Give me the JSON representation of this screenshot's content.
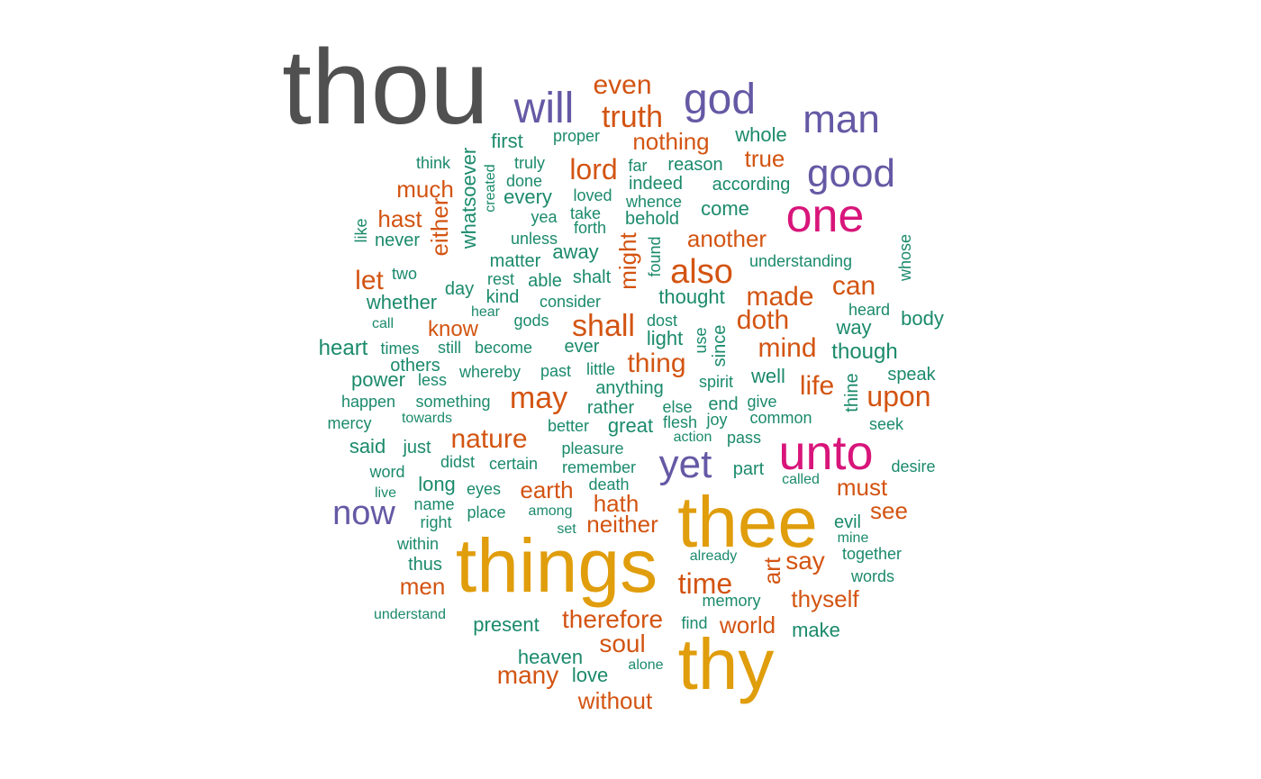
{
  "colors": {
    "gray": "#505050",
    "purple": "#6559a5",
    "magenta": "#d8157a",
    "gold": "#e09d0c",
    "orange": "#d35412",
    "green": "#1b8a6b"
  },
  "words": [
    {
      "text": "thou",
      "color": "gray"
    },
    {
      "text": "things",
      "color": "gold"
    },
    {
      "text": "thee",
      "color": "gold"
    },
    {
      "text": "thy",
      "color": "gold"
    },
    {
      "text": "unto",
      "color": "magenta"
    },
    {
      "text": "one",
      "color": "magenta"
    },
    {
      "text": "will",
      "color": "purple"
    },
    {
      "text": "god",
      "color": "purple"
    },
    {
      "text": "man",
      "color": "purple"
    },
    {
      "text": "good",
      "color": "purple"
    },
    {
      "text": "yet",
      "color": "purple"
    },
    {
      "text": "now",
      "color": "purple"
    },
    {
      "text": "even",
      "color": "orange"
    },
    {
      "text": "truth",
      "color": "orange"
    },
    {
      "text": "nothing",
      "color": "orange"
    },
    {
      "text": "lord",
      "color": "orange"
    },
    {
      "text": "true",
      "color": "orange"
    },
    {
      "text": "much",
      "color": "orange"
    },
    {
      "text": "hast",
      "color": "orange"
    },
    {
      "text": "either",
      "color": "orange"
    },
    {
      "text": "might",
      "color": "orange"
    },
    {
      "text": "another",
      "color": "orange"
    },
    {
      "text": "also",
      "color": "orange"
    },
    {
      "text": "let",
      "color": "orange"
    },
    {
      "text": "can",
      "color": "orange"
    },
    {
      "text": "made",
      "color": "orange"
    },
    {
      "text": "shall",
      "color": "orange"
    },
    {
      "text": "doth",
      "color": "orange"
    },
    {
      "text": "know",
      "color": "orange"
    },
    {
      "text": "mind",
      "color": "orange"
    },
    {
      "text": "thing",
      "color": "orange"
    },
    {
      "text": "life",
      "color": "orange"
    },
    {
      "text": "upon",
      "color": "orange"
    },
    {
      "text": "may",
      "color": "orange"
    },
    {
      "text": "nature",
      "color": "orange"
    },
    {
      "text": "earth",
      "color": "orange"
    },
    {
      "text": "hath",
      "color": "orange"
    },
    {
      "text": "must",
      "color": "orange"
    },
    {
      "text": "neither",
      "color": "orange"
    },
    {
      "text": "see",
      "color": "orange"
    },
    {
      "text": "say",
      "color": "orange"
    },
    {
      "text": "art",
      "color": "orange"
    },
    {
      "text": "time",
      "color": "orange"
    },
    {
      "text": "men",
      "color": "orange"
    },
    {
      "text": "thyself",
      "color": "orange"
    },
    {
      "text": "therefore",
      "color": "orange"
    },
    {
      "text": "world",
      "color": "orange"
    },
    {
      "text": "soul",
      "color": "orange"
    },
    {
      "text": "many",
      "color": "orange"
    },
    {
      "text": "without",
      "color": "orange"
    },
    {
      "text": "proper",
      "color": "green"
    },
    {
      "text": "first",
      "color": "green"
    },
    {
      "text": "whole",
      "color": "green"
    },
    {
      "text": "whatsoever",
      "color": "green"
    },
    {
      "text": "think",
      "color": "green"
    },
    {
      "text": "truly",
      "color": "green"
    },
    {
      "text": "far",
      "color": "green"
    },
    {
      "text": "reason",
      "color": "green"
    },
    {
      "text": "done",
      "color": "green"
    },
    {
      "text": "indeed",
      "color": "green"
    },
    {
      "text": "according",
      "color": "green"
    },
    {
      "text": "created",
      "color": "green"
    },
    {
      "text": "every",
      "color": "green"
    },
    {
      "text": "loved",
      "color": "green"
    },
    {
      "text": "whence",
      "color": "green"
    },
    {
      "text": "take",
      "color": "green"
    },
    {
      "text": "come",
      "color": "green"
    },
    {
      "text": "yea",
      "color": "green"
    },
    {
      "text": "behold",
      "color": "green"
    },
    {
      "text": "forth",
      "color": "green"
    },
    {
      "text": "like",
      "color": "green"
    },
    {
      "text": "never",
      "color": "green"
    },
    {
      "text": "unless",
      "color": "green"
    },
    {
      "text": "found",
      "color": "green"
    },
    {
      "text": "away",
      "color": "green"
    },
    {
      "text": "whose",
      "color": "green"
    },
    {
      "text": "matter",
      "color": "green"
    },
    {
      "text": "understanding",
      "color": "green"
    },
    {
      "text": "two",
      "color": "green"
    },
    {
      "text": "rest",
      "color": "green"
    },
    {
      "text": "able",
      "color": "green"
    },
    {
      "text": "shalt",
      "color": "green"
    },
    {
      "text": "day",
      "color": "green"
    },
    {
      "text": "kind",
      "color": "green"
    },
    {
      "text": "whether",
      "color": "green"
    },
    {
      "text": "consider",
      "color": "green"
    },
    {
      "text": "thought",
      "color": "green"
    },
    {
      "text": "hear",
      "color": "green"
    },
    {
      "text": "heard",
      "color": "green"
    },
    {
      "text": "call",
      "color": "green"
    },
    {
      "text": "gods",
      "color": "green"
    },
    {
      "text": "dost",
      "color": "green"
    },
    {
      "text": "use",
      "color": "green"
    },
    {
      "text": "way",
      "color": "green"
    },
    {
      "text": "body",
      "color": "green"
    },
    {
      "text": "since",
      "color": "green"
    },
    {
      "text": "light",
      "color": "green"
    },
    {
      "text": "heart",
      "color": "green"
    },
    {
      "text": "times",
      "color": "green"
    },
    {
      "text": "still",
      "color": "green"
    },
    {
      "text": "become",
      "color": "green"
    },
    {
      "text": "ever",
      "color": "green"
    },
    {
      "text": "though",
      "color": "green"
    },
    {
      "text": "others",
      "color": "green"
    },
    {
      "text": "power",
      "color": "green"
    },
    {
      "text": "less",
      "color": "green"
    },
    {
      "text": "whereby",
      "color": "green"
    },
    {
      "text": "past",
      "color": "green"
    },
    {
      "text": "little",
      "color": "green"
    },
    {
      "text": "well",
      "color": "green"
    },
    {
      "text": "spirit",
      "color": "green"
    },
    {
      "text": "thine",
      "color": "green"
    },
    {
      "text": "speak",
      "color": "green"
    },
    {
      "text": "anything",
      "color": "green"
    },
    {
      "text": "happen",
      "color": "green"
    },
    {
      "text": "something",
      "color": "green"
    },
    {
      "text": "rather",
      "color": "green"
    },
    {
      "text": "else",
      "color": "green"
    },
    {
      "text": "end",
      "color": "green"
    },
    {
      "text": "give",
      "color": "green"
    },
    {
      "text": "mercy",
      "color": "green"
    },
    {
      "text": "towards",
      "color": "green"
    },
    {
      "text": "better",
      "color": "green"
    },
    {
      "text": "great",
      "color": "green"
    },
    {
      "text": "flesh",
      "color": "green"
    },
    {
      "text": "joy",
      "color": "green"
    },
    {
      "text": "common",
      "color": "green"
    },
    {
      "text": "seek",
      "color": "green"
    },
    {
      "text": "action",
      "color": "green"
    },
    {
      "text": "pass",
      "color": "green"
    },
    {
      "text": "said",
      "color": "green"
    },
    {
      "text": "just",
      "color": "green"
    },
    {
      "text": "pleasure",
      "color": "green"
    },
    {
      "text": "didst",
      "color": "green"
    },
    {
      "text": "certain",
      "color": "green"
    },
    {
      "text": "remember",
      "color": "green"
    },
    {
      "text": "part",
      "color": "green"
    },
    {
      "text": "desire",
      "color": "green"
    },
    {
      "text": "word",
      "color": "green"
    },
    {
      "text": "long",
      "color": "green"
    },
    {
      "text": "eyes",
      "color": "green"
    },
    {
      "text": "death",
      "color": "green"
    },
    {
      "text": "called",
      "color": "green"
    },
    {
      "text": "live",
      "color": "green"
    },
    {
      "text": "name",
      "color": "green"
    },
    {
      "text": "place",
      "color": "green"
    },
    {
      "text": "among",
      "color": "green"
    },
    {
      "text": "right",
      "color": "green"
    },
    {
      "text": "set",
      "color": "green"
    },
    {
      "text": "evil",
      "color": "green"
    },
    {
      "text": "mine",
      "color": "green"
    },
    {
      "text": "within",
      "color": "green"
    },
    {
      "text": "already",
      "color": "green"
    },
    {
      "text": "together",
      "color": "green"
    },
    {
      "text": "thus",
      "color": "green"
    },
    {
      "text": "words",
      "color": "green"
    },
    {
      "text": "memory",
      "color": "green"
    },
    {
      "text": "understand",
      "color": "green"
    },
    {
      "text": "present",
      "color": "green"
    },
    {
      "text": "find",
      "color": "green"
    },
    {
      "text": "make",
      "color": "green"
    },
    {
      "text": "heaven",
      "color": "green"
    },
    {
      "text": "alone",
      "color": "green"
    },
    {
      "text": "love",
      "color": "green"
    }
  ]
}
